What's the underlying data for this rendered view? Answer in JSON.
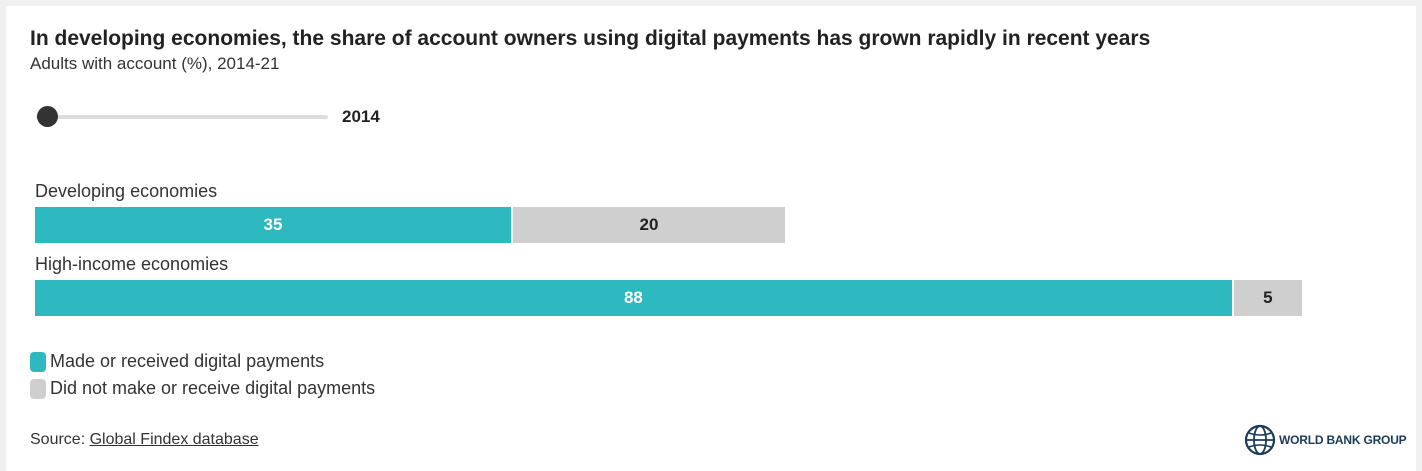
{
  "header": {
    "title": "In developing economies, the share of account owners using digital payments has grown rapidly in recent years",
    "subtitle": "Adults with account (%), 2014-21"
  },
  "slider": {
    "year": "2014"
  },
  "colors": {
    "made_received": "#2eb8c0",
    "did_not": "#cfcfcf"
  },
  "chart_data": {
    "type": "bar",
    "orientation": "horizontal",
    "stacked": true,
    "categories": [
      "Developing economies",
      "High-income economies"
    ],
    "series": [
      {
        "name": "Made or received digital payments",
        "values": [
          35,
          88
        ]
      },
      {
        "name": "Did not make or receive digital payments",
        "values": [
          20,
          5
        ]
      }
    ],
    "xlim": [
      0,
      100
    ],
    "legend": "bottom-left",
    "grid": false
  },
  "footer": {
    "source_prefix": "Source: ",
    "source_link": "Global Findex database",
    "logo_text": "WORLD BANK GROUP"
  }
}
